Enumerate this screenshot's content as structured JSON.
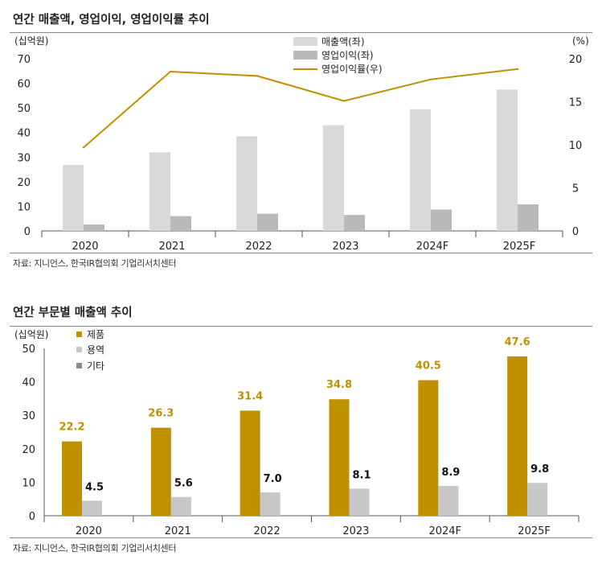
{
  "colors": {
    "sales": "#d9d9d9",
    "op_profit": "#b9b9b9",
    "op_margin": "#bf9000",
    "product": "#bf9000",
    "service": "#c7c7c7",
    "other": "#8c8c8c"
  },
  "chart_data": [
    {
      "type": "bar",
      "title": "연간 매출액, 영업이익, 영업이익률 추이",
      "ylabel": "(십억원)",
      "y2label": "(%)",
      "categories": [
        "2020",
        "2021",
        "2022",
        "2023",
        "2024F",
        "2025F"
      ],
      "ylim": [
        0,
        70
      ],
      "y2lim": [
        0,
        20
      ],
      "yticks": [
        "0",
        "10",
        "20",
        "30",
        "40",
        "50",
        "60",
        "70"
      ],
      "y2ticks": [
        "0",
        "5",
        "10",
        "15",
        "20"
      ],
      "series": [
        {
          "name": "매출액(좌)",
          "kind": "bar",
          "axis": "left",
          "values": [
            26.8,
            32.0,
            38.5,
            43.0,
            49.5,
            57.5
          ]
        },
        {
          "name": "영업이익(좌)",
          "kind": "bar",
          "axis": "left",
          "values": [
            2.6,
            6.0,
            7.0,
            6.5,
            8.7,
            10.8
          ]
        },
        {
          "name": "영업이익률(우)",
          "kind": "line",
          "axis": "right",
          "values": [
            9.7,
            18.5,
            18.0,
            15.1,
            17.6,
            18.8
          ]
        }
      ],
      "source": "자료: 지니언스, 한국IR협의회 기업리서치센터"
    },
    {
      "type": "bar",
      "title": "연간 부문별 매출액 추이",
      "ylabel": "(십억원)",
      "categories": [
        "2020",
        "2021",
        "2022",
        "2023",
        "2024F",
        "2025F"
      ],
      "ylim": [
        0,
        50
      ],
      "yticks": [
        "0",
        "10",
        "20",
        "30",
        "40",
        "50"
      ],
      "series": [
        {
          "name": "제품",
          "values": [
            22.2,
            26.3,
            31.4,
            34.8,
            40.5,
            47.6
          ],
          "labels": [
            "22.2",
            "26.3",
            "31.4",
            "34.8",
            "40.5",
            "47.6"
          ]
        },
        {
          "name": "용역",
          "values": [
            4.5,
            5.6,
            7.0,
            8.1,
            8.9,
            9.8
          ],
          "labels": [
            "4.5",
            "5.6",
            "7.0",
            "8.1",
            "8.9",
            "9.8"
          ]
        },
        {
          "name": "기타",
          "values": [
            0.0,
            0.0,
            0.0,
            0.0,
            0.0,
            0.0
          ]
        }
      ],
      "source": "자료: 지니언스, 한국IR협의회 기업리서치센터"
    }
  ]
}
